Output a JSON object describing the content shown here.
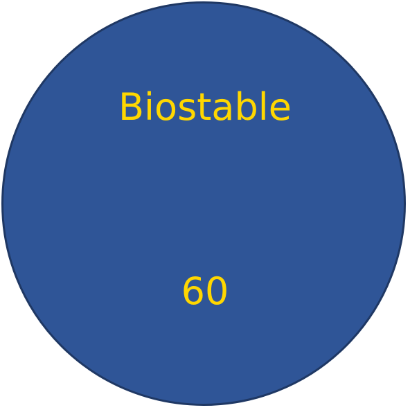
{
  "circle": {
    "title": "Biostable",
    "value": "60"
  },
  "colors": {
    "circle_fill": "#2f5597",
    "circle_border": "#1f3864",
    "text": "#ffd700"
  }
}
